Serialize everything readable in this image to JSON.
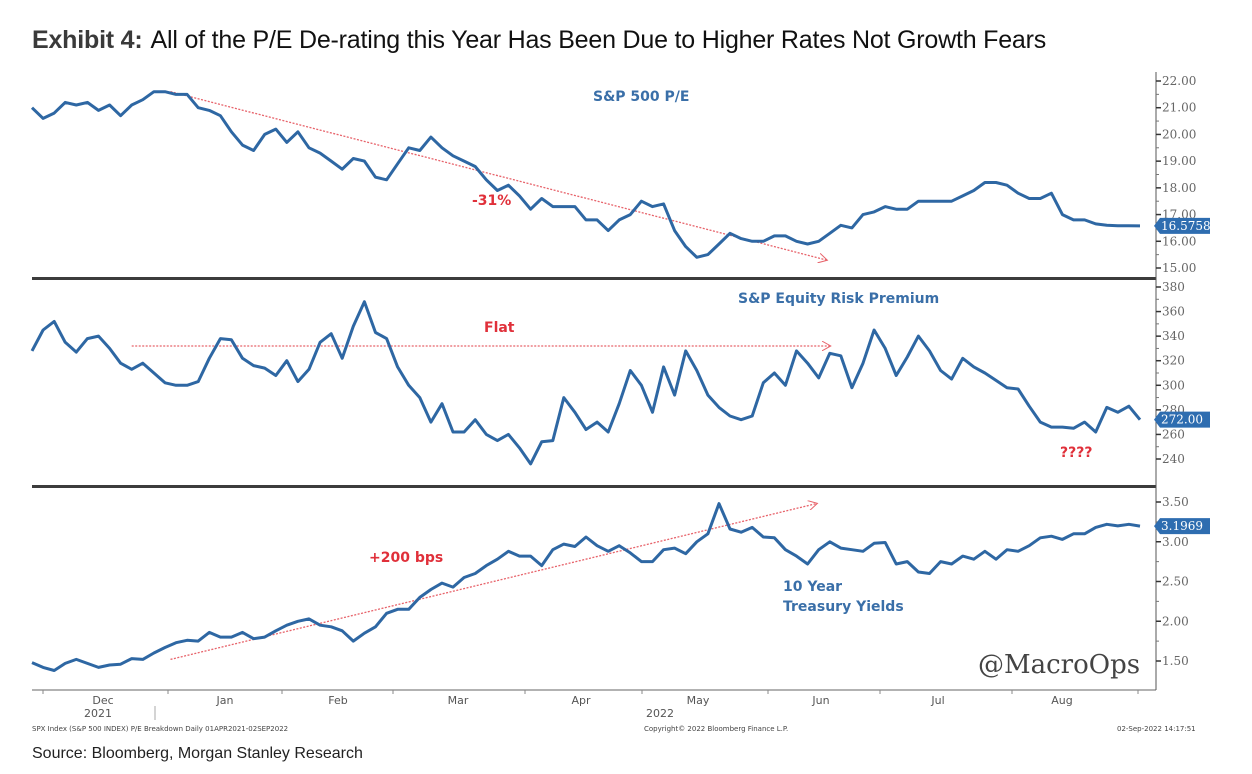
{
  "title": {
    "lead": "Exhibit 4:",
    "text": "All of the P/E De-rating this Year Has Been Due to Higher Rates Not Growth Fears"
  },
  "source": "Source: Bloomberg, Morgan Stanley Research",
  "footer": {
    "left": "SPX Index (S&P 500 INDEX) P/E Breakdown  Daily 01APR2021-02SEP2022",
    "center": "Copyright© 2022 Bloomberg Finance L.P.",
    "right": "02-Sep-2022 14:17:51"
  },
  "watermark": "@MacroOps",
  "colors": {
    "line": "#2e67a3",
    "annotation": "#e0303a",
    "badge": "#2e6db0"
  },
  "chart_data": [
    {
      "type": "line",
      "title": "S&P 500 P/E",
      "ylim": [
        15,
        22
      ],
      "yticks": [
        "22.00",
        "21.00",
        "20.00",
        "19.00",
        "18.00",
        "17.00",
        "16.00",
        "15.00"
      ],
      "ytick_values": [
        22,
        21,
        20,
        19,
        18,
        17,
        16,
        15
      ],
      "last_value_label": "16.5758",
      "last_value": 16.5758,
      "annotation": {
        "text": "-31%",
        "arrow_from": [
          0.125,
          21.6
        ],
        "arrow_to": [
          0.717,
          15.3
        ]
      },
      "x": [
        0,
        0.01,
        0.02,
        0.03,
        0.04,
        0.05,
        0.06,
        0.07,
        0.08,
        0.09,
        0.1,
        0.11,
        0.12,
        0.13,
        0.14,
        0.15,
        0.16,
        0.17,
        0.18,
        0.19,
        0.2,
        0.21,
        0.22,
        0.23,
        0.24,
        0.25,
        0.26,
        0.27,
        0.28,
        0.29,
        0.3,
        0.31,
        0.32,
        0.33,
        0.34,
        0.35,
        0.36,
        0.37,
        0.38,
        0.39,
        0.4,
        0.41,
        0.42,
        0.43,
        0.44,
        0.45,
        0.46,
        0.47,
        0.48,
        0.49,
        0.5,
        0.51,
        0.52,
        0.53,
        0.54,
        0.55,
        0.56,
        0.57,
        0.58,
        0.59,
        0.6,
        0.61,
        0.62,
        0.63,
        0.64,
        0.65,
        0.66,
        0.67,
        0.68,
        0.69,
        0.7,
        0.71,
        0.72,
        0.73,
        0.74,
        0.75,
        0.76,
        0.77,
        0.78,
        0.79,
        0.8,
        0.81,
        0.82,
        0.83,
        0.84,
        0.85,
        0.86,
        0.87,
        0.88,
        0.89,
        0.9,
        0.91,
        0.92,
        0.93,
        0.94,
        0.95,
        0.96,
        0.97,
        0.98,
        0.99,
        1.0
      ],
      "values": [
        21.0,
        20.6,
        20.8,
        21.2,
        21.1,
        21.2,
        20.9,
        21.1,
        20.7,
        21.1,
        21.3,
        21.6,
        21.6,
        21.5,
        21.5,
        21.0,
        20.9,
        20.7,
        20.1,
        19.6,
        19.4,
        20.0,
        20.2,
        19.7,
        20.1,
        19.5,
        19.3,
        19.0,
        18.7,
        19.1,
        19.0,
        18.4,
        18.3,
        18.9,
        19.5,
        19.4,
        19.9,
        19.5,
        19.2,
        19.0,
        18.8,
        18.3,
        17.9,
        18.1,
        17.7,
        17.2,
        17.6,
        17.3,
        17.3,
        17.3,
        16.8,
        16.8,
        16.4,
        16.8,
        17.0,
        17.5,
        17.3,
        17.4,
        16.4,
        15.8,
        15.4,
        15.5,
        15.9,
        16.3,
        16.1,
        16.0,
        16.0,
        16.2,
        16.2,
        16.0,
        15.9,
        16.0,
        16.3,
        16.6,
        16.5,
        17.0,
        17.1,
        17.3,
        17.2,
        17.2,
        17.5,
        17.5,
        17.5,
        17.5,
        17.7,
        17.9,
        18.2,
        18.2,
        18.1,
        17.8,
        17.6,
        17.6,
        17.8,
        17.0,
        16.8,
        16.8,
        16.65,
        16.6,
        16.58,
        16.58,
        16.5758
      ]
    },
    {
      "type": "line",
      "title": "S&P Equity Risk Premium",
      "ylim": [
        230,
        380
      ],
      "yticks": [
        "380",
        "360",
        "340",
        "320",
        "300",
        "280",
        "260",
        "240"
      ],
      "ytick_values": [
        380,
        360,
        340,
        320,
        300,
        280,
        260,
        240
      ],
      "last_value_label": "272.00",
      "last_value": 272,
      "annotations": [
        {
          "text": "Flat",
          "arrow_from": [
            0.09,
            332
          ],
          "arrow_to": [
            0.72,
            332
          ]
        },
        {
          "text": "????"
        }
      ],
      "x": [
        0,
        0.01,
        0.02,
        0.03,
        0.04,
        0.05,
        0.06,
        0.07,
        0.08,
        0.09,
        0.1,
        0.11,
        0.12,
        0.13,
        0.14,
        0.15,
        0.16,
        0.17,
        0.18,
        0.19,
        0.2,
        0.21,
        0.22,
        0.23,
        0.24,
        0.25,
        0.26,
        0.27,
        0.28,
        0.29,
        0.3,
        0.31,
        0.32,
        0.33,
        0.34,
        0.35,
        0.36,
        0.37,
        0.38,
        0.39,
        0.4,
        0.41,
        0.42,
        0.43,
        0.44,
        0.45,
        0.46,
        0.47,
        0.48,
        0.49,
        0.5,
        0.51,
        0.52,
        0.53,
        0.54,
        0.55,
        0.56,
        0.57,
        0.58,
        0.59,
        0.6,
        0.61,
        0.62,
        0.63,
        0.64,
        0.65,
        0.66,
        0.67,
        0.68,
        0.69,
        0.7,
        0.71,
        0.72,
        0.73,
        0.74,
        0.75,
        0.76,
        0.77,
        0.78,
        0.79,
        0.8,
        0.81,
        0.82,
        0.83,
        0.84,
        0.85,
        0.86,
        0.87,
        0.88,
        0.89,
        0.9,
        0.91,
        0.92,
        0.93,
        0.94,
        0.95,
        0.96,
        0.97,
        0.98,
        0.99,
        1.0
      ],
      "values": [
        328,
        345,
        352,
        335,
        327,
        338,
        340,
        330,
        318,
        313,
        318,
        310,
        302,
        300,
        300,
        303,
        322,
        338,
        337,
        322,
        316,
        314,
        308,
        320,
        303,
        313,
        335,
        342,
        322,
        348,
        368,
        343,
        338,
        315,
        300,
        290,
        270,
        285,
        262,
        262,
        272,
        260,
        255,
        260,
        249,
        236,
        254,
        255,
        290,
        278,
        264,
        270,
        262,
        285,
        312,
        300,
        278,
        315,
        292,
        328,
        312,
        292,
        282,
        275,
        272,
        275,
        302,
        310,
        300,
        328,
        318,
        306,
        326,
        324,
        298,
        318,
        345,
        330,
        308,
        323,
        340,
        328,
        312,
        305,
        322,
        315,
        310,
        304,
        298,
        297,
        283,
        270,
        266,
        266,
        265,
        270,
        262,
        282,
        278,
        283,
        272
      ]
    },
    {
      "type": "line",
      "title": "10 Year Treasury Yields",
      "ylim": [
        1.3,
        3.6
      ],
      "yticks": [
        "3.50",
        "3.00",
        "2.50",
        "2.00",
        "1.50"
      ],
      "ytick_values": [
        3.5,
        3.0,
        2.5,
        2.0,
        1.5
      ],
      "last_value_label": "3.1969",
      "last_value": 3.1969,
      "annotation": {
        "text": "+200 bps",
        "arrow_from": [
          0.125,
          1.52
        ],
        "arrow_to": [
          0.708,
          3.48
        ]
      },
      "x": [
        0,
        0.01,
        0.02,
        0.03,
        0.04,
        0.05,
        0.06,
        0.07,
        0.08,
        0.09,
        0.1,
        0.11,
        0.12,
        0.13,
        0.14,
        0.15,
        0.16,
        0.17,
        0.18,
        0.19,
        0.2,
        0.21,
        0.22,
        0.23,
        0.24,
        0.25,
        0.26,
        0.27,
        0.28,
        0.29,
        0.3,
        0.31,
        0.32,
        0.33,
        0.34,
        0.35,
        0.36,
        0.37,
        0.38,
        0.39,
        0.4,
        0.41,
        0.42,
        0.43,
        0.44,
        0.45,
        0.46,
        0.47,
        0.48,
        0.49,
        0.5,
        0.51,
        0.52,
        0.53,
        0.54,
        0.55,
        0.56,
        0.57,
        0.58,
        0.59,
        0.6,
        0.61,
        0.62,
        0.63,
        0.64,
        0.65,
        0.66,
        0.67,
        0.68,
        0.69,
        0.7,
        0.71,
        0.72,
        0.73,
        0.74,
        0.75,
        0.76,
        0.77,
        0.78,
        0.79,
        0.8,
        0.81,
        0.82,
        0.83,
        0.84,
        0.85,
        0.86,
        0.87,
        0.88,
        0.89,
        0.9,
        0.91,
        0.92,
        0.93,
        0.94,
        0.95,
        0.96,
        0.97,
        0.98,
        0.99,
        1.0
      ],
      "values": [
        1.48,
        1.42,
        1.38,
        1.47,
        1.52,
        1.47,
        1.42,
        1.45,
        1.46,
        1.53,
        1.52,
        1.6,
        1.67,
        1.73,
        1.76,
        1.75,
        1.86,
        1.8,
        1.8,
        1.86,
        1.78,
        1.8,
        1.88,
        1.95,
        2.0,
        2.03,
        1.95,
        1.93,
        1.88,
        1.75,
        1.85,
        1.93,
        2.1,
        2.15,
        2.15,
        2.3,
        2.4,
        2.48,
        2.43,
        2.55,
        2.6,
        2.7,
        2.78,
        2.88,
        2.82,
        2.82,
        2.7,
        2.9,
        2.97,
        2.94,
        3.06,
        2.95,
        2.88,
        2.95,
        2.86,
        2.75,
        2.75,
        2.9,
        2.92,
        2.85,
        3.0,
        3.1,
        3.48,
        3.16,
        3.12,
        3.18,
        3.06,
        3.05,
        2.9,
        2.82,
        2.72,
        2.9,
        3.0,
        2.92,
        2.9,
        2.88,
        2.98,
        2.99,
        2.72,
        2.75,
        2.62,
        2.6,
        2.75,
        2.72,
        2.82,
        2.78,
        2.88,
        2.78,
        2.9,
        2.88,
        2.95,
        3.05,
        3.07,
        3.03,
        3.1,
        3.1,
        3.18,
        3.22,
        3.2,
        3.22,
        3.1969
      ]
    }
  ],
  "x_axis": {
    "months": [
      "Dec",
      "Jan",
      "Feb",
      "Mar",
      "Apr",
      "May",
      "Jun",
      "Jul",
      "Aug"
    ],
    "years": [
      "2021",
      "2022"
    ]
  }
}
